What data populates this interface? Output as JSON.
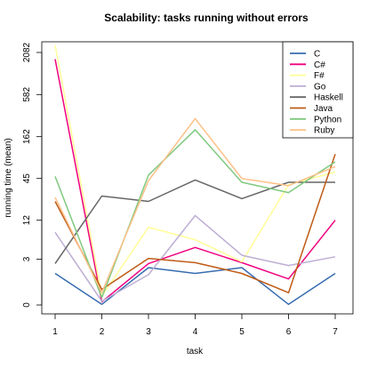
{
  "chart_data": {
    "type": "line",
    "title": "Scalability: tasks running without errors",
    "xlabel": "task",
    "ylabel": "running time (mean)",
    "x": [
      1,
      2,
      3,
      4,
      5,
      6,
      7
    ],
    "xlim": [
      1,
      7
    ],
    "ylim": [
      0,
      2082
    ],
    "y_scale": "log",
    "y_ticks": [
      0,
      3,
      12,
      45,
      162,
      582,
      2082
    ],
    "grid": false,
    "legend_position": "top-right",
    "series": [
      {
        "name": "C",
        "color": "#386cb0",
        "values": [
          1.6,
          0.02,
          2.1,
          1.6,
          2.1,
          0.02,
          1.6
        ]
      },
      {
        "name": "C#",
        "color": "#f0027f",
        "values": [
          1700,
          0.1,
          2.5,
          4.7,
          2.6,
          1.2,
          12
        ]
      },
      {
        "name": "F#",
        "color": "#ffff99",
        "values": [
          2600,
          0.3,
          9.5,
          6.2,
          2.7,
          37,
          55
        ]
      },
      {
        "name": "Go",
        "color": "#beaed4",
        "values": [
          8,
          0.12,
          1.5,
          14,
          3.5,
          2.3,
          3.3
        ]
      },
      {
        "name": "Haskell",
        "color": "#666666",
        "values": [
          2.5,
          26,
          22,
          43,
          24,
          40,
          40
        ]
      },
      {
        "name": "Java",
        "color": "#bf5b17",
        "values": [
          22,
          0.6,
          3.1,
          2.6,
          1.6,
          0.45,
          95
        ]
      },
      {
        "name": "Python",
        "color": "#7fc97f",
        "values": [
          48,
          0.25,
          50,
          200,
          40,
          29,
          75
        ]
      },
      {
        "name": "Ruby",
        "color": "#fdc086",
        "values": [
          25,
          0.45,
          42,
          280,
          45,
          36,
          65
        ]
      }
    ]
  }
}
